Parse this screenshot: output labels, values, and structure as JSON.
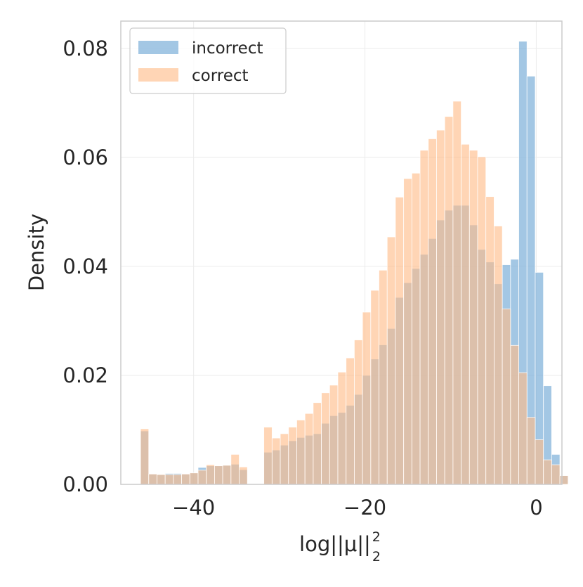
{
  "chart_data": {
    "type": "bar",
    "subtype": "overlapping-histogram",
    "title": "",
    "xlabel": "log||μ||",
    "xlabel_superscript": "2",
    "xlabel_subscript": "2",
    "ylabel": "Density",
    "xlim": [
      -48.5,
      3
    ],
    "ylim": [
      0,
      0.085
    ],
    "xticks": [
      -40,
      -20,
      0
    ],
    "xtick_labels": [
      "−40",
      "−20",
      "0"
    ],
    "yticks": [
      0,
      0.02,
      0.04,
      0.06,
      0.08
    ],
    "ytick_labels": [
      "0.00",
      "0.02",
      "0.04",
      "0.06",
      "0.08"
    ],
    "grid": true,
    "legend_position": "top-left",
    "bin_start": -46.2,
    "bin_width": 0.96,
    "series": [
      {
        "name": "incorrect",
        "color": "#7fb2d9",
        "values": [
          0.0098,
          0.0019,
          0.0018,
          0.002,
          0.002,
          0.0019,
          0.0021,
          0.0031,
          0.0034,
          0.0034,
          0.0035,
          0.0037,
          0.0027,
          0.0,
          0.0,
          0.0059,
          0.0063,
          0.0072,
          0.008,
          0.0086,
          0.009,
          0.0093,
          0.0112,
          0.0126,
          0.0132,
          0.0145,
          0.0165,
          0.02,
          0.023,
          0.0256,
          0.0286,
          0.0343,
          0.037,
          0.0396,
          0.0422,
          0.0451,
          0.0485,
          0.0503,
          0.0512,
          0.0512,
          0.0476,
          0.0431,
          0.0408,
          0.0368,
          0.0403,
          0.0413,
          0.0813,
          0.0749,
          0.0389,
          0.0181,
          0.0055,
          0.0016
        ]
      },
      {
        "name": "correct",
        "color": "#ffbb88",
        "values": [
          0.0102,
          0.0019,
          0.0018,
          0.0018,
          0.0018,
          0.0019,
          0.0021,
          0.0026,
          0.0036,
          0.0034,
          0.0035,
          0.0055,
          0.0032,
          0.0,
          0.0,
          0.0105,
          0.0085,
          0.0093,
          0.0105,
          0.0118,
          0.013,
          0.015,
          0.0168,
          0.0182,
          0.0206,
          0.0232,
          0.0265,
          0.0316,
          0.0356,
          0.0393,
          0.0454,
          0.0527,
          0.0561,
          0.0571,
          0.0613,
          0.0634,
          0.065,
          0.0675,
          0.0703,
          0.0624,
          0.0613,
          0.0601,
          0.0528,
          0.0474,
          0.0322,
          0.0255,
          0.0205,
          0.0123,
          0.0082,
          0.0045,
          0.0036,
          0.0016
        ]
      }
    ]
  }
}
